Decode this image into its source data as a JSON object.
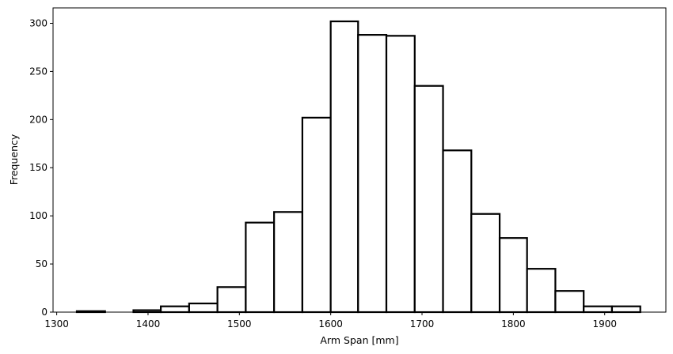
{
  "chart_data": {
    "type": "bar",
    "title": "",
    "xlabel": "Arm Span [mm]",
    "ylabel": "Frequency",
    "xlim": [
      1296,
      1967
    ],
    "ylim": [
      0,
      316
    ],
    "x_ticks": [
      1300,
      1400,
      1500,
      1600,
      1700,
      1800,
      1900
    ],
    "y_ticks": [
      0,
      50,
      100,
      150,
      200,
      250,
      300
    ],
    "grid": false,
    "legend": "none",
    "bar_fill": "#ffffff",
    "bar_edge": "#000000",
    "bins": [
      {
        "x0": 1322,
        "x1": 1353,
        "count": 1
      },
      {
        "x0": 1353,
        "x1": 1384,
        "count": 0
      },
      {
        "x0": 1384,
        "x1": 1414,
        "count": 2
      },
      {
        "x0": 1414,
        "x1": 1445,
        "count": 6
      },
      {
        "x0": 1445,
        "x1": 1476,
        "count": 9
      },
      {
        "x0": 1476,
        "x1": 1507,
        "count": 26
      },
      {
        "x0": 1507,
        "x1": 1538,
        "count": 93
      },
      {
        "x0": 1538,
        "x1": 1569,
        "count": 104
      },
      {
        "x0": 1569,
        "x1": 1600,
        "count": 202
      },
      {
        "x0": 1600,
        "x1": 1630,
        "count": 302
      },
      {
        "x0": 1630,
        "x1": 1661,
        "count": 288
      },
      {
        "x0": 1661,
        "x1": 1692,
        "count": 287
      },
      {
        "x0": 1692,
        "x1": 1723,
        "count": 235
      },
      {
        "x0": 1723,
        "x1": 1754,
        "count": 168
      },
      {
        "x0": 1754,
        "x1": 1785,
        "count": 102
      },
      {
        "x0": 1785,
        "x1": 1815,
        "count": 77
      },
      {
        "x0": 1815,
        "x1": 1846,
        "count": 45
      },
      {
        "x0": 1846,
        "x1": 1877,
        "count": 22
      },
      {
        "x0": 1877,
        "x1": 1908,
        "count": 6
      },
      {
        "x0": 1908,
        "x1": 1939,
        "count": 6
      }
    ]
  }
}
